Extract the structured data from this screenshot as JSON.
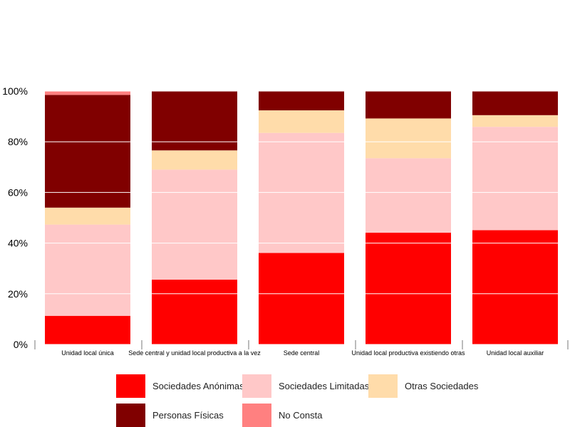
{
  "chart_data": {
    "type": "bar",
    "stacked": true,
    "percent": true,
    "categories": [
      "Unidad local única",
      "Sede central y unidad local productiva a la vez",
      "Sede central",
      "Unidad local productiva existiendo otras",
      "Unidad local auxiliar"
    ],
    "series": [
      {
        "name": "Sociedades Anónimas",
        "color": "#ff0000",
        "values": [
          11.3,
          25.6,
          36.1,
          44.1,
          45.1
        ]
      },
      {
        "name": "Sociedades Limitadas",
        "color": "#ffc8c8",
        "values": [
          36.0,
          43.4,
          47.4,
          29.4,
          40.8
        ]
      },
      {
        "name": "Otras Sociedades",
        "color": "#ffdcaa",
        "values": [
          6.7,
          7.6,
          8.9,
          15.7,
          4.6
        ]
      },
      {
        "name": "Personas Físicas",
        "color": "#800000",
        "values": [
          44.5,
          23.4,
          7.6,
          10.8,
          9.5
        ]
      },
      {
        "name": "No Consta",
        "color": "#ff8080",
        "values": [
          1.5,
          0.0,
          0.0,
          0.0,
          0.0
        ]
      }
    ],
    "yticks": [
      "0%",
      "20%",
      "40%",
      "60%",
      "80%",
      "100%"
    ],
    "ylim": [
      0,
      100
    ],
    "title": "",
    "xlabel": "",
    "ylabel": "",
    "grid": true,
    "legend_position": "bottom"
  }
}
